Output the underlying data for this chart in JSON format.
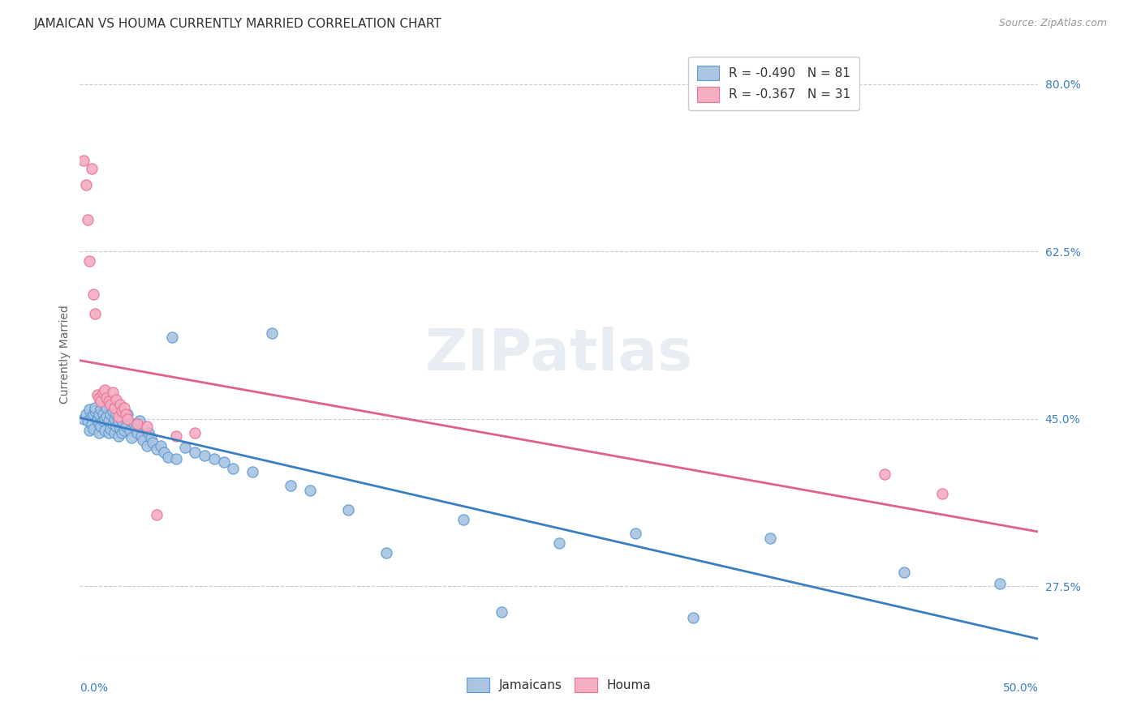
{
  "title": "JAMAICAN VS HOUMA CURRENTLY MARRIED CORRELATION CHART",
  "source": "Source: ZipAtlas.com",
  "ylabel": "Currently Married",
  "watermark": "ZIPatlas",
  "ytick_vals": [
    0.275,
    0.45,
    0.625,
    0.8
  ],
  "ytick_labels": [
    "27.5%",
    "45.0%",
    "62.5%",
    "80.0%"
  ],
  "xtick_labels": [
    "0.0%",
    "50.0%"
  ],
  "xmin": 0.0,
  "xmax": 0.5,
  "ymin": 0.2,
  "ymax": 0.835,
  "jamaicans_color": "#aac4e2",
  "houma_color": "#f5adc0",
  "jamaicans_edge_color": "#5b9bd5",
  "houma_edge_color": "#e8739a",
  "jamaicans_line_color": "#3a7fc1",
  "houma_line_color": "#e06090",
  "legend_text_j": "R = -0.490   N = 81",
  "legend_text_h": "R = -0.367   N = 31",
  "background_color": "#ffffff",
  "grid_color": "#cccccc",
  "title_fontsize": 11,
  "source_fontsize": 9,
  "axis_label_fontsize": 10,
  "tick_fontsize": 10,
  "legend_fontsize": 11,
  "jamaicans_x": [
    0.002,
    0.003,
    0.004,
    0.005,
    0.005,
    0.006,
    0.006,
    0.007,
    0.007,
    0.008,
    0.008,
    0.009,
    0.009,
    0.01,
    0.01,
    0.01,
    0.011,
    0.011,
    0.012,
    0.012,
    0.013,
    0.013,
    0.013,
    0.014,
    0.014,
    0.015,
    0.015,
    0.016,
    0.016,
    0.017,
    0.017,
    0.018,
    0.018,
    0.019,
    0.019,
    0.02,
    0.02,
    0.021,
    0.022,
    0.022,
    0.023,
    0.024,
    0.025,
    0.026,
    0.027,
    0.028,
    0.029,
    0.03,
    0.031,
    0.032,
    0.033,
    0.035,
    0.036,
    0.037,
    0.038,
    0.04,
    0.042,
    0.044,
    0.046,
    0.048,
    0.05,
    0.055,
    0.06,
    0.065,
    0.07,
    0.075,
    0.08,
    0.09,
    0.1,
    0.11,
    0.12,
    0.14,
    0.16,
    0.2,
    0.22,
    0.25,
    0.29,
    0.32,
    0.36,
    0.43,
    0.48
  ],
  "jamaicans_y": [
    0.45,
    0.455,
    0.448,
    0.46,
    0.438,
    0.452,
    0.445,
    0.455,
    0.44,
    0.458,
    0.462,
    0.45,
    0.448,
    0.455,
    0.445,
    0.435,
    0.46,
    0.442,
    0.455,
    0.448,
    0.465,
    0.45,
    0.438,
    0.452,
    0.462,
    0.448,
    0.435,
    0.455,
    0.44,
    0.458,
    0.445,
    0.435,
    0.45,
    0.442,
    0.455,
    0.448,
    0.432,
    0.44,
    0.435,
    0.448,
    0.438,
    0.442,
    0.455,
    0.438,
    0.43,
    0.445,
    0.44,
    0.435,
    0.448,
    0.432,
    0.428,
    0.422,
    0.435,
    0.43,
    0.425,
    0.418,
    0.422,
    0.415,
    0.41,
    0.535,
    0.408,
    0.42,
    0.415,
    0.412,
    0.408,
    0.405,
    0.398,
    0.395,
    0.54,
    0.38,
    0.375,
    0.355,
    0.31,
    0.345,
    0.248,
    0.32,
    0.33,
    0.242,
    0.325,
    0.29,
    0.278
  ],
  "houma_x": [
    0.002,
    0.003,
    0.004,
    0.005,
    0.006,
    0.007,
    0.008,
    0.009,
    0.01,
    0.011,
    0.012,
    0.013,
    0.014,
    0.015,
    0.016,
    0.017,
    0.018,
    0.019,
    0.02,
    0.021,
    0.022,
    0.023,
    0.024,
    0.025,
    0.03,
    0.035,
    0.04,
    0.05,
    0.06,
    0.42,
    0.45
  ],
  "houma_y": [
    0.72,
    0.695,
    0.658,
    0.615,
    0.712,
    0.58,
    0.56,
    0.475,
    0.472,
    0.468,
    0.478,
    0.48,
    0.472,
    0.468,
    0.465,
    0.478,
    0.462,
    0.47,
    0.452,
    0.465,
    0.458,
    0.462,
    0.455,
    0.45,
    0.445,
    0.442,
    0.35,
    0.432,
    0.435,
    0.392,
    0.372
  ]
}
